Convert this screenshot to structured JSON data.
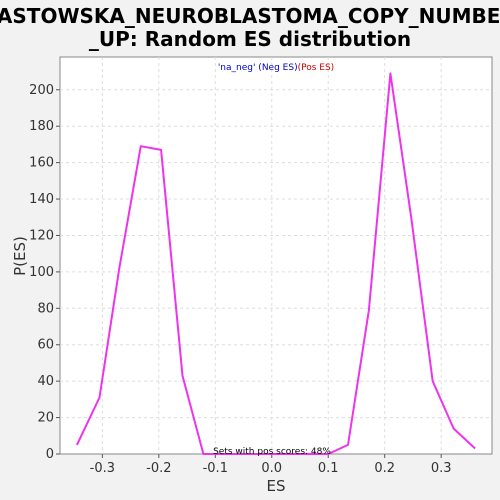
{
  "chart_data": {
    "type": "line",
    "title_lines": [
      "LASTOWSKA_NEUROBLASTOMA_COPY_NUMBER",
      "_UP: Random ES distribution"
    ],
    "xlabel": "ES",
    "ylabel": "P(ES)",
    "xlim": [
      -0.375,
      0.39
    ],
    "ylim": [
      0,
      218
    ],
    "xticks": [
      -0.3,
      -0.2,
      -0.1,
      0.0,
      0.1,
      0.2,
      0.3
    ],
    "xtick_labels": [
      "-0.3",
      "-0.2",
      "-0.1",
      "0.0",
      "0.1",
      "0.2",
      "0.3"
    ],
    "yticks": [
      0,
      20,
      40,
      60,
      80,
      100,
      120,
      140,
      160,
      180,
      200
    ],
    "ytick_labels": [
      "0",
      "20",
      "40",
      "60",
      "80",
      "100",
      "120",
      "140",
      "160",
      "180",
      "200"
    ],
    "grid": true,
    "legend": {
      "placement": "top-center",
      "parts": [
        {
          "text": "'na_neg' (Neg ES)",
          "color": "#0000cc"
        },
        {
          "text": "(Pos ES)",
          "color": "#cc0000"
        }
      ]
    },
    "annotation": "Sets with pos scores: 48%",
    "series": [
      {
        "color": "#ee33ee",
        "x": [
          -0.345,
          -0.305,
          -0.27,
          -0.232,
          -0.196,
          -0.158,
          -0.121,
          -0.083,
          0.1,
          0.135,
          0.172,
          0.21,
          0.247,
          0.285,
          0.322,
          0.36
        ],
        "y": [
          5,
          31,
          102,
          169,
          167,
          43,
          0,
          0,
          0,
          5,
          79,
          209,
          130,
          40,
          14,
          3
        ]
      }
    ]
  }
}
